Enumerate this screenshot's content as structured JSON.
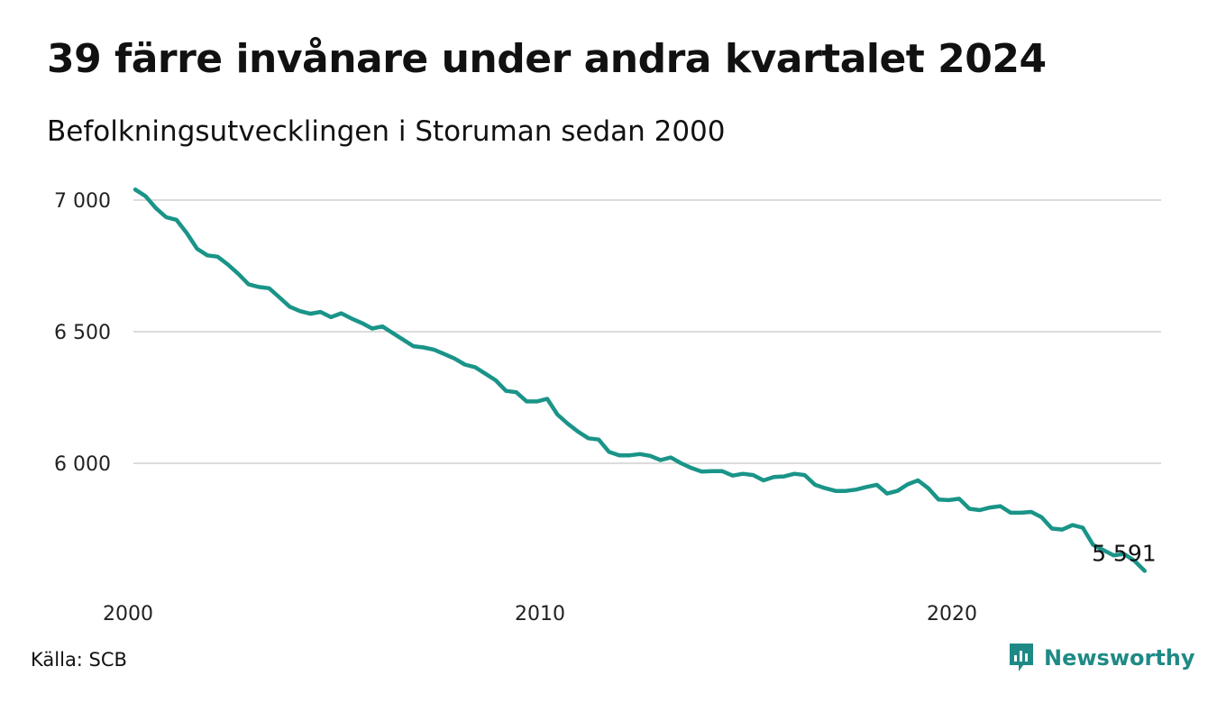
{
  "title": "39 färre invånare under andra kvartalet 2024",
  "subtitle": "Befolkningsutvecklingen i Storuman sedan 2000",
  "source": "Källa: SCB",
  "brand": {
    "name": "Newsworthy",
    "icon": "newsworthy-logo-icon",
    "color": "#1f8a85"
  },
  "chart_data": {
    "type": "line",
    "line_color": "#1a9488",
    "grid": true,
    "ylim": [
      5550,
      7050
    ],
    "yticks": [
      {
        "value": 7000,
        "label": "7 000"
      },
      {
        "value": 6500,
        "label": "6 500"
      },
      {
        "value": 6000,
        "label": "6 000"
      }
    ],
    "xticks": [
      {
        "value": 2000,
        "label": "2000"
      },
      {
        "value": 2010,
        "label": "2010"
      },
      {
        "value": 2020,
        "label": "2020"
      }
    ],
    "end_label": "5 591",
    "series": [
      {
        "x_start": 2000,
        "x_step": 0.25,
        "values": [
          7040,
          7015,
          6970,
          6935,
          6925,
          6875,
          6815,
          6790,
          6785,
          6755,
          6720,
          6680,
          6670,
          6665,
          6630,
          6595,
          6578,
          6568,
          6575,
          6555,
          6570,
          6550,
          6533,
          6512,
          6520,
          6495,
          6470,
          6445,
          6440,
          6432,
          6415,
          6398,
          6375,
          6365,
          6340,
          6315,
          6275,
          6270,
          6235,
          6235,
          6245,
          6185,
          6150,
          6120,
          6095,
          6090,
          6043,
          6030,
          6030,
          6035,
          6028,
          6012,
          6022,
          6000,
          5982,
          5968,
          5970,
          5970,
          5953,
          5960,
          5955,
          5935,
          5948,
          5950,
          5960,
          5955,
          5918,
          5905,
          5895,
          5895,
          5900,
          5910,
          5918,
          5885,
          5895,
          5920,
          5935,
          5905,
          5862,
          5860,
          5865,
          5827,
          5822,
          5832,
          5837,
          5812,
          5812,
          5815,
          5795,
          5752,
          5748,
          5765,
          5755,
          5690,
          5670,
          5650,
          5655,
          5630,
          5591
        ]
      }
    ]
  }
}
